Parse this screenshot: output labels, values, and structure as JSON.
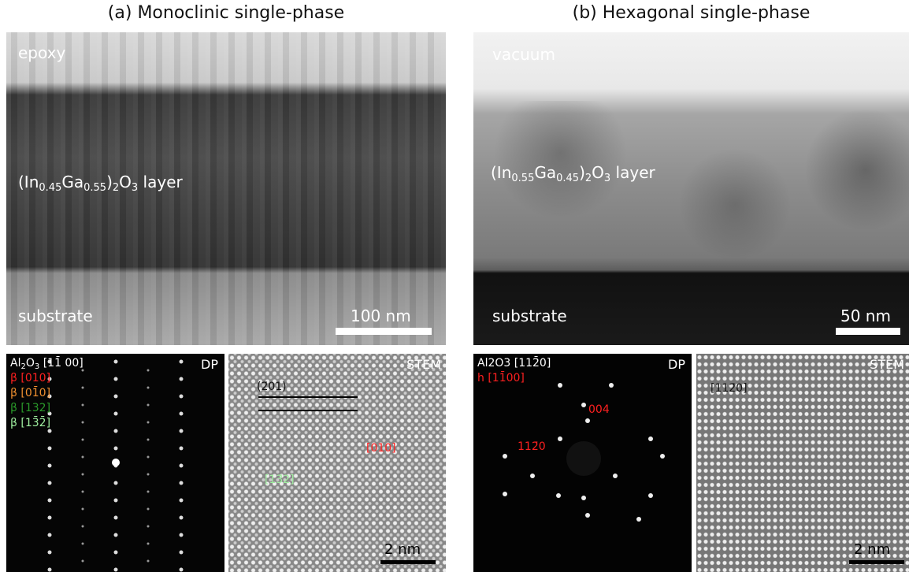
{
  "panels": [
    {
      "title": "(a) Monoclinic single-phase",
      "tem": {
        "top_label": "epoxy",
        "layer_label": [
          "(In",
          "0.45",
          "Ga",
          "0.55",
          ")",
          "2",
          "O",
          "3",
          " layer"
        ],
        "bottom_label": "substrate",
        "scale": "100 nm"
      },
      "dp": {
        "zone": [
          "Al",
          "2",
          "O",
          "3",
          " [11̄ 00]"
        ],
        "corner": "DP",
        "legend": [
          "β [010]",
          "β [01̄0]",
          "β [132]",
          "β [13̄2̄]"
        ]
      },
      "stem": {
        "corner": "STEM",
        "plane": "(2̄01)",
        "dir_red": "[010]",
        "dir_green": "[13̄2]",
        "scale": "2 nm"
      }
    },
    {
      "title": "(b) Hexagonal single-phase",
      "tem": {
        "top_label": "vacuum",
        "layer_label": [
          "(In",
          "0.55",
          "Ga",
          "0.45",
          ")",
          "2",
          "O",
          "3",
          " layer"
        ],
        "bottom_label": "substrate",
        "scale": "50 nm"
      },
      "dp": {
        "zone": [
          "Al2O3 [112̄0]"
        ],
        "corner": "DP",
        "legend": [
          "h [11̄00]"
        ],
        "spot_a": "004",
        "spot_b": "112̄0"
      },
      "stem": {
        "corner": "STEM",
        "dir": "[112̄0]",
        "scale": "2 nm"
      }
    }
  ]
}
